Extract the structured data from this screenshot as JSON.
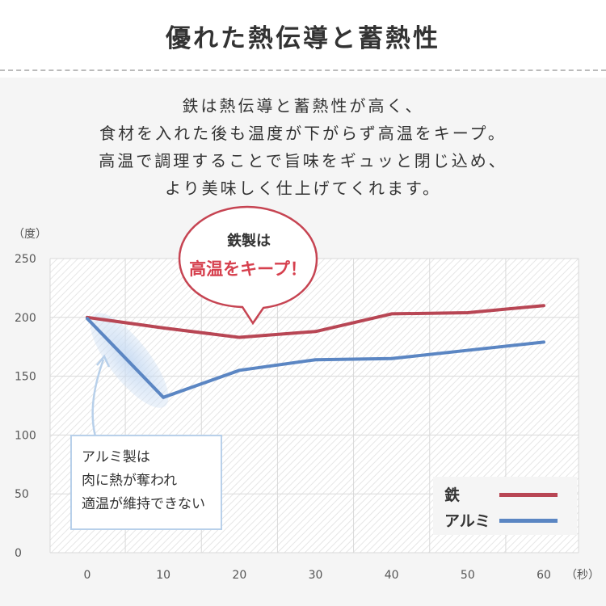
{
  "header": {
    "title": "優れた熱伝導と蓄熱性"
  },
  "description": [
    "鉄は熱伝導と蓄熱性が高く、",
    "食材を入れた後も温度が下がらず高温をキープ。",
    "高温で調理することで旨味をギュッと閉じ込め、",
    "より美味しく仕上げてくれます。"
  ],
  "callout": {
    "line1": "鉄製は",
    "line2": "高温をキープ！"
  },
  "note": [
    "アルミ製は",
    "肉に熱が奪われ",
    "適温が維持できない"
  ],
  "colors": {
    "iron": "#b84654",
    "aluminum": "#5b86c3",
    "accent": "#d6404e",
    "note_border": "#b8d0ea"
  },
  "chart_data": {
    "type": "line",
    "ylabel": "（度）",
    "xlabel": "（秒）",
    "x": [
      0,
      10,
      20,
      30,
      40,
      50,
      60
    ],
    "xticks": [
      "0",
      "10",
      "20",
      "30",
      "40",
      "50",
      "60"
    ],
    "yticks": [
      "0",
      "50",
      "100",
      "150",
      "200",
      "250"
    ],
    "ylim": [
      0,
      250
    ],
    "xlim": [
      0,
      60
    ],
    "series": [
      {
        "name": "鉄",
        "values": [
          200,
          191,
          183,
          188,
          203,
          204,
          210
        ],
        "color": "#b84654"
      },
      {
        "name": "アルミ",
        "values": [
          199,
          132,
          155,
          164,
          165,
          172,
          179
        ],
        "color": "#5b86c3"
      }
    ],
    "legend_position": "bottom-right",
    "grid": true
  }
}
